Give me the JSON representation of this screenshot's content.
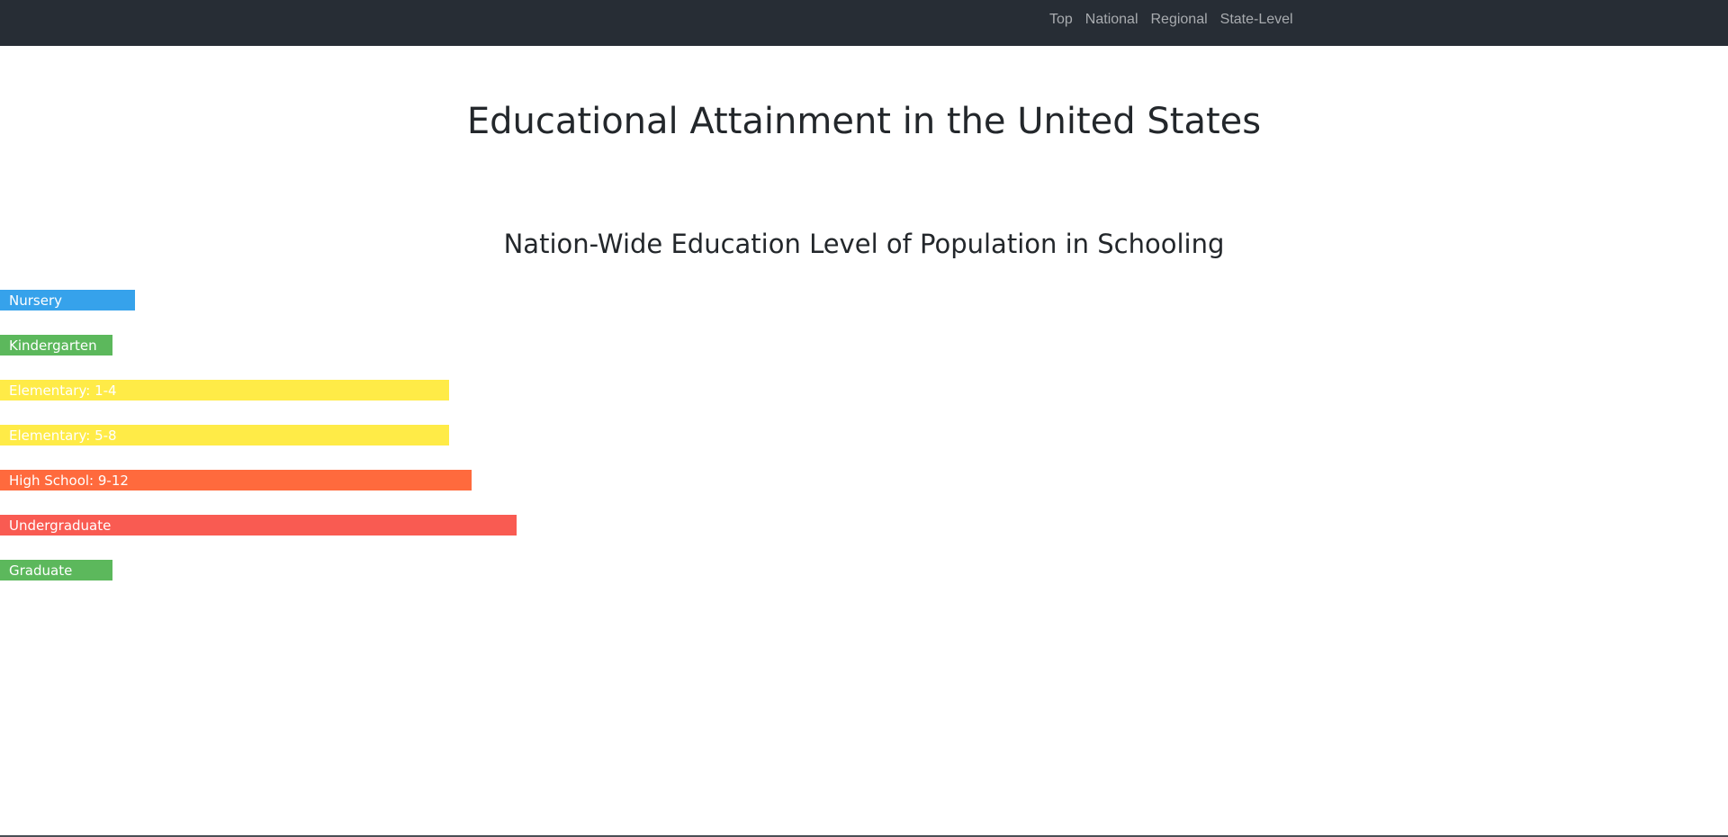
{
  "nav": {
    "links": [
      "Top",
      "National",
      "Regional",
      "State-Level"
    ]
  },
  "page": {
    "title": "Educational Attainment in the United States"
  },
  "chart_data": {
    "type": "bar",
    "orientation": "horizontal",
    "title": "Nation-Wide Education Level of Population in Schooling",
    "xlabel": "",
    "ylabel": "",
    "grid": false,
    "legend": "none",
    "categories": [
      "Nursery",
      "Kindergarten",
      "Elementary: 1-4",
      "Elementary: 5-8",
      "High School: 9-12",
      "Undergraduate",
      "Graduate"
    ],
    "values": [
      6,
      5,
      20,
      20,
      21,
      23,
      5
    ],
    "colors": [
      "#36a2eb",
      "#5cb85c",
      "#ffeb47",
      "#ffeb47",
      "#ff6a3d",
      "#f95b52",
      "#5cb85c"
    ],
    "xlim": [
      0,
      23
    ]
  }
}
